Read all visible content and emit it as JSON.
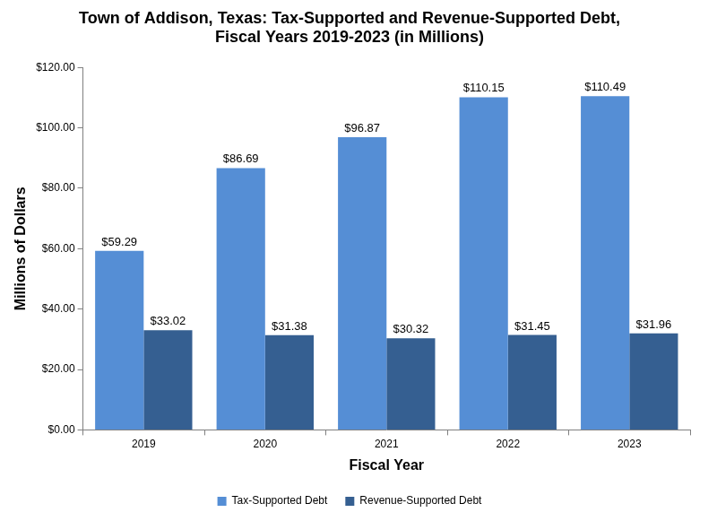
{
  "chart_data": {
    "type": "bar",
    "title": [
      "Town of Addison, Texas: Tax-Supported and Revenue-Supported Debt,",
      "Fiscal Years 2019-2023 (in Millions)"
    ],
    "x_label": "Fiscal Year",
    "y_label": "Millions of Dollars",
    "categories": [
      "2019",
      "2020",
      "2021",
      "2022",
      "2023"
    ],
    "series": [
      {
        "name": "Tax-Supported Debt",
        "color": "#558ed5",
        "values": [
          59.29,
          86.69,
          96.87,
          110.15,
          110.49
        ],
        "value_labels": [
          "$59.29",
          "$86.69",
          "$96.87",
          "$110.15",
          "$110.49"
        ]
      },
      {
        "name": "Revenue-Supported Debt",
        "color": "#355f91",
        "values": [
          33.02,
          31.38,
          30.32,
          31.45,
          31.96
        ],
        "value_labels": [
          "$33.02",
          "$31.38",
          "$30.32",
          "$31.45",
          "$31.96"
        ]
      }
    ],
    "ylim": [
      0,
      120
    ],
    "yticks": [
      {
        "value": 0,
        "label": "$0.00"
      },
      {
        "value": 20,
        "label": "$20.00"
      },
      {
        "value": 40,
        "label": "$40.00"
      },
      {
        "value": 60,
        "label": "$60.00"
      },
      {
        "value": 80,
        "label": "$80.00"
      },
      {
        "value": 100,
        "label": "$100.00"
      },
      {
        "value": 120,
        "label": "$120.00"
      }
    ],
    "grid": false,
    "legend": "bottom",
    "data_labels": true
  }
}
